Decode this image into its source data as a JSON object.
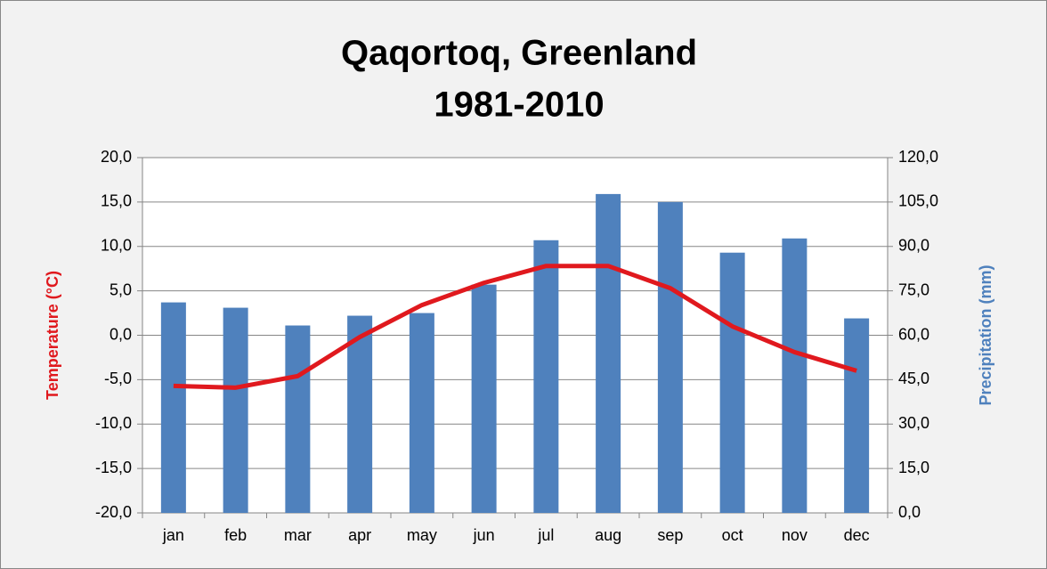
{
  "chart_data": {
    "type": "bar-line",
    "title": [
      "Qaqortoq, Greenland",
      "1981-2010"
    ],
    "categories": [
      "jan",
      "feb",
      "mar",
      "apr",
      "may",
      "jun",
      "jul",
      "aug",
      "sep",
      "oct",
      "nov",
      "dec"
    ],
    "series": [
      {
        "name": "Precipitation",
        "type": "bar",
        "axis": "y2",
        "color": "#4f81bd",
        "values": [
          71.1,
          69.3,
          63.3,
          66.6,
          67.5,
          77.1,
          92.1,
          107.7,
          105.0,
          87.9,
          92.7,
          65.7
        ]
      },
      {
        "name": "Temperature",
        "type": "line",
        "axis": "y",
        "color": "#e0191e",
        "values": [
          -5.7,
          -5.9,
          -4.6,
          -0.2,
          3.4,
          5.9,
          7.8,
          7.8,
          5.3,
          1.0,
          -1.9,
          -4.0
        ]
      }
    ],
    "ylabel": "Temperature (°C)",
    "ylabel_color": "#e0191e",
    "y2label": "Precipitation (mm)",
    "y2label_color": "#4f81bd",
    "ylim": [
      -20,
      20
    ],
    "yticks": [
      {
        "value": -20,
        "label": "-20,0"
      },
      {
        "value": -15,
        "label": "-15,0"
      },
      {
        "value": -10,
        "label": "-10,0"
      },
      {
        "value": -5,
        "label": "-5,0"
      },
      {
        "value": 0,
        "label": "0,0"
      },
      {
        "value": 5,
        "label": "5,0"
      },
      {
        "value": 10,
        "label": "10,0"
      },
      {
        "value": 15,
        "label": "15,0"
      },
      {
        "value": 20,
        "label": "20,0"
      }
    ],
    "y2lim": [
      0,
      120
    ],
    "y2ticks": [
      {
        "value": 0,
        "label": "0,0"
      },
      {
        "value": 15,
        "label": "15,0"
      },
      {
        "value": 30,
        "label": "30,0"
      },
      {
        "value": 45,
        "label": "45,0"
      },
      {
        "value": 60,
        "label": "60,0"
      },
      {
        "value": 75,
        "label": "75,0"
      },
      {
        "value": 90,
        "label": "90,0"
      },
      {
        "value": 105,
        "label": "105,0"
      },
      {
        "value": 120,
        "label": "120,0"
      }
    ],
    "grid": true
  }
}
